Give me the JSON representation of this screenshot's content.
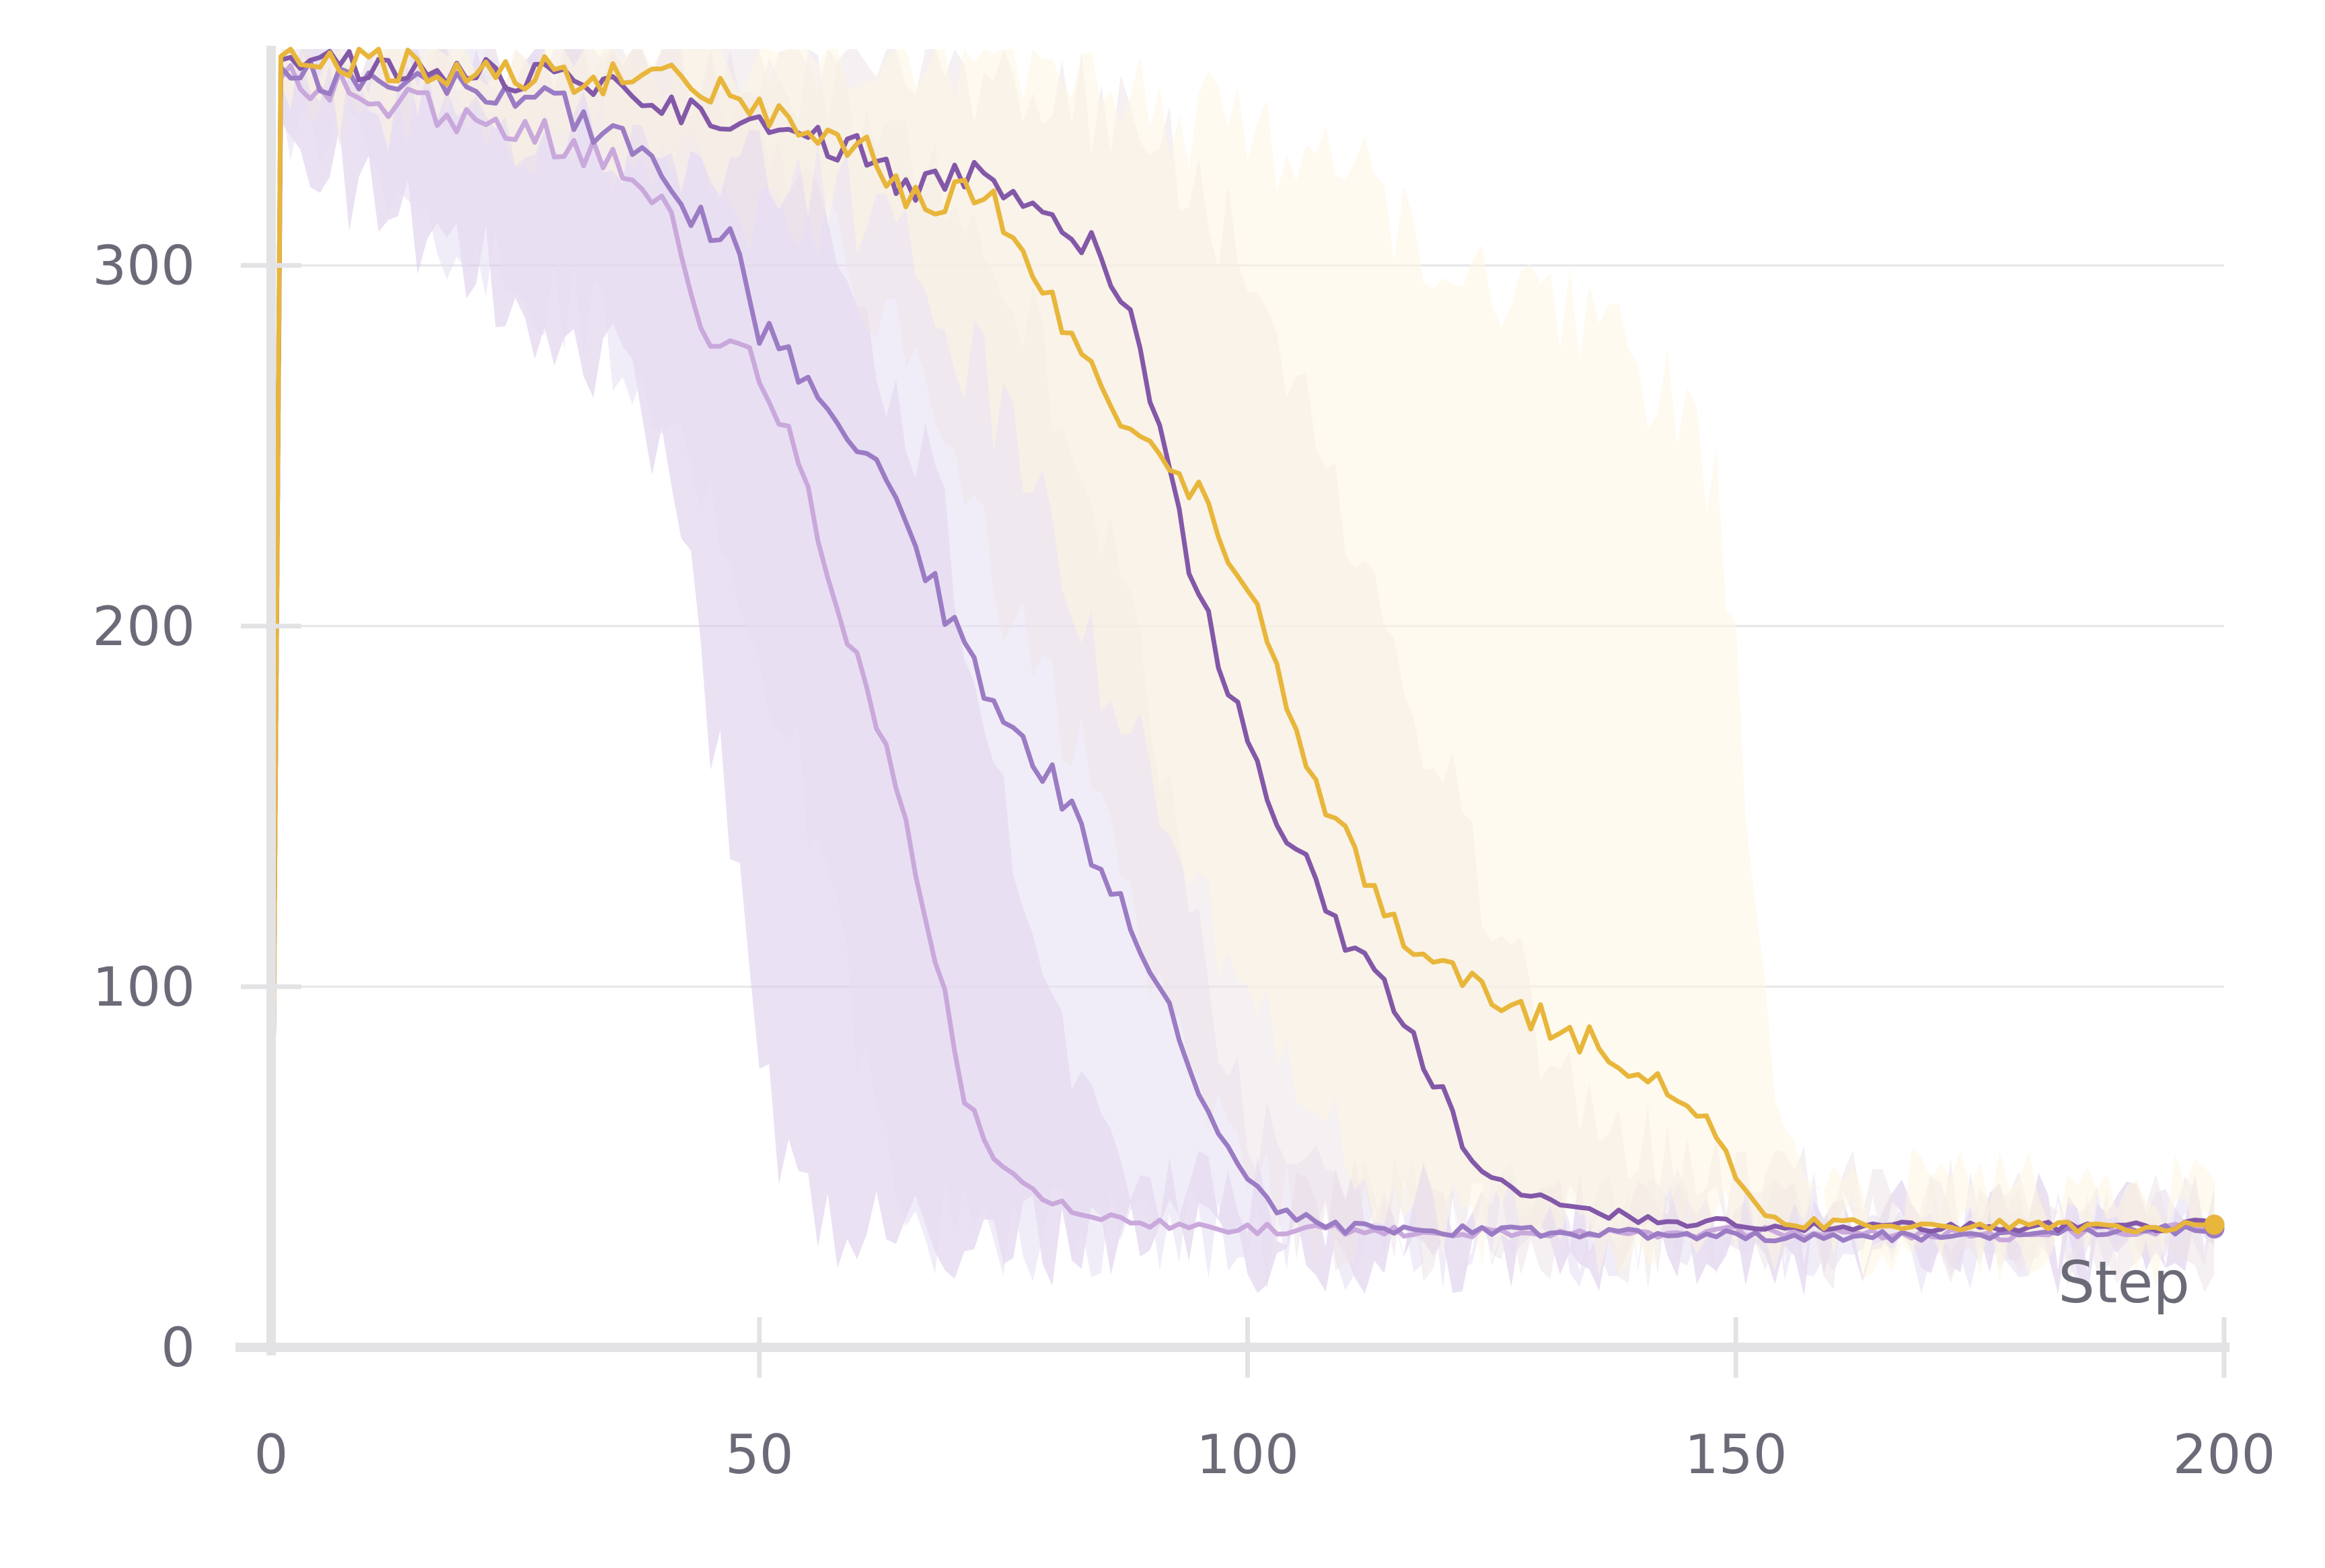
{
  "chart_data": {
    "type": "line",
    "title": "",
    "xlabel": "Step",
    "ylabel": "",
    "xlim": [
      0,
      200
    ],
    "ylim": [
      0,
      360
    ],
    "xticks": [
      0,
      50,
      100,
      150,
      200
    ],
    "yticks": [
      0,
      100,
      200,
      300
    ],
    "grid": "horizontal",
    "legend": "none",
    "series": [
      {
        "color": "#c9a8dc",
        "band_color": "#d9c9ea",
        "x": [
          0,
          1,
          5,
          10,
          15,
          20,
          25,
          30,
          35,
          40,
          42,
          44,
          46,
          48,
          50,
          52,
          54,
          56,
          58,
          60,
          62,
          64,
          66,
          68,
          70,
          72,
          74,
          76,
          78,
          80,
          85,
          90,
          100,
          120,
          150,
          175,
          199
        ],
        "y": [
          0,
          352,
          350,
          347,
          344,
          341,
          339,
          334,
          330,
          318,
          302,
          285,
          275,
          278,
          270,
          258,
          245,
          225,
          208,
          190,
          170,
          155,
          132,
          110,
          80,
          62,
          53,
          47,
          43,
          40,
          36,
          34,
          33,
          32,
          32,
          31,
          33
        ],
        "lower": [
          0,
          340,
          330,
          320,
          310,
          300,
          295,
          280,
          270,
          250,
          225,
          190,
          160,
          120,
          80,
          60,
          45,
          38,
          33,
          30,
          30,
          30,
          30,
          30,
          29,
          29,
          29,
          29,
          29,
          29,
          29,
          29,
          29,
          29,
          29,
          29,
          29
        ],
        "upper": [
          0,
          360,
          360,
          360,
          360,
          360,
          360,
          360,
          360,
          360,
          355,
          350,
          345,
          340,
          340,
          335,
          330,
          320,
          305,
          290,
          275,
          262,
          250,
          235,
          215,
          190,
          165,
          140,
          115,
          90,
          65,
          48,
          40,
          36,
          35,
          34,
          36
        ]
      },
      {
        "color": "#9b7cc4",
        "band_color": "#e6def3",
        "x": [
          0,
          1,
          5,
          10,
          15,
          20,
          25,
          30,
          35,
          40,
          44,
          48,
          50,
          54,
          56,
          58,
          60,
          62,
          64,
          66,
          68,
          70,
          72,
          74,
          76,
          78,
          80,
          82,
          84,
          86,
          88,
          90,
          92,
          94,
          96,
          98,
          100,
          103,
          110,
          130,
          150,
          175,
          199
        ],
        "y": [
          0,
          355,
          353,
          351,
          350,
          349,
          348,
          343,
          336,
          326,
          312,
          303,
          283,
          272,
          262,
          255,
          250,
          246,
          238,
          225,
          210,
          200,
          187,
          180,
          170,
          160,
          158,
          150,
          138,
          130,
          120,
          105,
          95,
          80,
          68,
          55,
          46,
          38,
          33,
          32,
          31,
          31,
          33
        ],
        "lower": [
          0,
          345,
          335,
          325,
          315,
          305,
          300,
          290,
          280,
          262,
          240,
          215,
          190,
          160,
          135,
          110,
          85,
          65,
          50,
          40,
          35,
          32,
          30,
          30,
          30,
          30,
          30,
          30,
          30,
          30,
          30,
          30,
          30,
          30,
          30,
          30,
          30,
          30,
          30,
          30,
          29,
          29,
          29
        ],
        "upper": [
          0,
          360,
          360,
          360,
          360,
          360,
          360,
          360,
          360,
          360,
          358,
          356,
          354,
          350,
          348,
          346,
          344,
          340,
          335,
          330,
          325,
          318,
          310,
          300,
          290,
          280,
          268,
          255,
          240,
          222,
          200,
          175,
          150,
          125,
          100,
          80,
          62,
          50,
          40,
          36,
          35,
          34,
          36
        ]
      },
      {
        "color": "#8358a8",
        "band_color": "#ede3e5",
        "x": [
          0,
          1,
          5,
          10,
          15,
          20,
          25,
          30,
          35,
          40,
          45,
          50,
          55,
          60,
          62,
          65,
          70,
          75,
          80,
          85,
          88,
          90,
          92,
          94,
          96,
          98,
          100,
          102,
          104,
          106,
          108,
          110,
          112,
          114,
          116,
          118,
          120,
          122,
          124,
          126,
          128,
          130,
          135,
          140,
          150,
          175,
          199
        ],
        "y": [
          0,
          357,
          356,
          355,
          354,
          353,
          352,
          351,
          349,
          346,
          342,
          338,
          335,
          332,
          330,
          322,
          325,
          322,
          316,
          303,
          285,
          262,
          240,
          218,
          200,
          182,
          167,
          150,
          140,
          132,
          120,
          115,
          108,
          98,
          90,
          78,
          68,
          55,
          48,
          45,
          43,
          41,
          38,
          36,
          34,
          33,
          34
        ],
        "lower": [
          0,
          350,
          348,
          345,
          342,
          340,
          338,
          335,
          332,
          328,
          322,
          316,
          310,
          300,
          290,
          270,
          240,
          210,
          180,
          150,
          125,
          105,
          90,
          75,
          62,
          52,
          45,
          40,
          37,
          35,
          34,
          33,
          32,
          32,
          31,
          31,
          31,
          31,
          31,
          31,
          31,
          31,
          31,
          31,
          30,
          30,
          30
        ],
        "upper": [
          0,
          360,
          360,
          360,
          360,
          360,
          360,
          360,
          360,
          360,
          360,
          360,
          360,
          360,
          360,
          358,
          355,
          352,
          348,
          344,
          340,
          336,
          332,
          326,
          318,
          310,
          300,
          290,
          278,
          265,
          250,
          235,
          220,
          205,
          190,
          175,
          160,
          145,
          130,
          115,
          100,
          88,
          68,
          55,
          42,
          38,
          38
        ]
      },
      {
        "color": "#e8b63b",
        "band_color": "#fdf5e2",
        "x": [
          0,
          1,
          5,
          10,
          15,
          20,
          25,
          30,
          35,
          40,
          45,
          50,
          55,
          60,
          62,
          64,
          66,
          68,
          70,
          72,
          74,
          76,
          78,
          80,
          82,
          84,
          86,
          88,
          90,
          92,
          94,
          96,
          98,
          100,
          102,
          104,
          106,
          108,
          110,
          112,
          114,
          116,
          118,
          120,
          125,
          130,
          135,
          140,
          143,
          146,
          148,
          150,
          152,
          154,
          160,
          175,
          190,
          199
        ],
        "y": [
          0,
          358,
          357,
          356,
          355,
          354,
          354,
          353,
          352,
          351,
          349,
          345,
          338,
          334,
          330,
          322,
          318,
          314,
          320,
          322,
          318,
          310,
          300,
          290,
          280,
          272,
          262,
          255,
          250,
          246,
          240,
          233,
          222,
          210,
          195,
          180,
          165,
          152,
          140,
          130,
          122,
          115,
          110,
          105,
          98,
          92,
          85,
          78,
          72,
          66,
          58,
          48,
          40,
          35,
          34,
          34,
          33,
          34
        ],
        "lower": [
          0,
          350,
          348,
          346,
          345,
          344,
          342,
          340,
          338,
          336,
          333,
          330,
          325,
          318,
          312,
          305,
          298,
          290,
          282,
          272,
          262,
          250,
          238,
          224,
          210,
          196,
          182,
          170,
          158,
          146,
          134,
          122,
          110,
          98,
          88,
          78,
          70,
          62,
          55,
          50,
          46,
          42,
          40,
          38,
          36,
          35,
          34,
          33,
          33,
          33,
          33,
          32,
          32,
          32,
          32,
          32,
          31,
          31
        ],
        "upper": [
          0,
          360,
          360,
          360,
          360,
          360,
          360,
          360,
          360,
          360,
          360,
          360,
          360,
          360,
          360,
          360,
          360,
          360,
          360,
          360,
          360,
          360,
          358,
          356,
          354,
          352,
          350,
          348,
          346,
          344,
          342,
          340,
          338,
          336,
          334,
          332,
          330,
          328,
          325,
          322,
          318,
          314,
          310,
          305,
          298,
          290,
          282,
          272,
          262,
          250,
          236,
          200,
          120,
          55,
          42,
          40,
          40,
          38
        ]
      }
    ]
  }
}
